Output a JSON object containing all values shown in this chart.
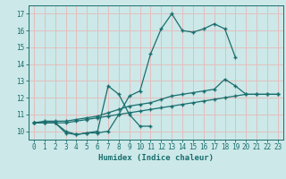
{
  "xlabel": "Humidex (Indice chaleur)",
  "xlim": [
    -0.5,
    23.5
  ],
  "ylim": [
    9.5,
    17.5
  ],
  "yticks": [
    10,
    11,
    12,
    13,
    14,
    15,
    16,
    17
  ],
  "xticks": [
    0,
    1,
    2,
    3,
    4,
    5,
    6,
    7,
    8,
    9,
    10,
    11,
    12,
    13,
    14,
    15,
    16,
    17,
    18,
    19,
    20,
    21,
    22,
    23
  ],
  "bg_color": "#cce8e8",
  "grid_color": "#e8b8b8",
  "line_color": "#1a6e6e",
  "curve1_x": [
    0,
    1,
    2,
    3,
    4,
    5,
    6,
    7,
    8,
    9,
    10,
    11,
    12,
    13,
    14,
    15,
    16,
    17,
    18,
    19
  ],
  "curve1_y": [
    10.5,
    10.5,
    10.5,
    9.9,
    9.8,
    9.9,
    9.9,
    10.0,
    11.0,
    12.1,
    12.4,
    14.6,
    16.1,
    17.0,
    16.0,
    15.9,
    16.1,
    16.4,
    16.1,
    14.4
  ],
  "curve2_x": [
    0,
    1,
    2,
    3,
    4,
    5,
    6,
    7,
    8,
    9,
    10,
    11
  ],
  "curve2_y": [
    10.5,
    10.5,
    10.5,
    10.0,
    9.8,
    9.9,
    10.0,
    12.7,
    12.2,
    11.0,
    10.3,
    10.3
  ],
  "curve3_x": [
    0,
    1,
    2,
    3,
    4,
    5,
    6,
    7,
    8,
    9,
    10,
    11,
    12,
    13,
    14,
    15,
    16,
    17,
    18,
    19,
    20,
    21,
    22,
    23
  ],
  "curve3_y": [
    10.5,
    10.6,
    10.6,
    10.6,
    10.7,
    10.8,
    10.9,
    11.1,
    11.3,
    11.5,
    11.6,
    11.7,
    11.9,
    12.1,
    12.2,
    12.3,
    12.4,
    12.5,
    13.1,
    12.7,
    12.2,
    12.2,
    12.2,
    12.2
  ],
  "curve4_x": [
    0,
    1,
    2,
    3,
    4,
    5,
    6,
    7,
    8,
    9,
    10,
    11,
    12,
    13,
    14,
    15,
    16,
    17,
    18,
    19,
    20,
    21,
    22,
    23
  ],
  "curve4_y": [
    10.5,
    10.5,
    10.5,
    10.5,
    10.6,
    10.7,
    10.8,
    10.9,
    11.0,
    11.1,
    11.2,
    11.3,
    11.4,
    11.5,
    11.6,
    11.7,
    11.8,
    11.9,
    12.0,
    12.1,
    12.2,
    12.2,
    12.2,
    12.2
  ]
}
